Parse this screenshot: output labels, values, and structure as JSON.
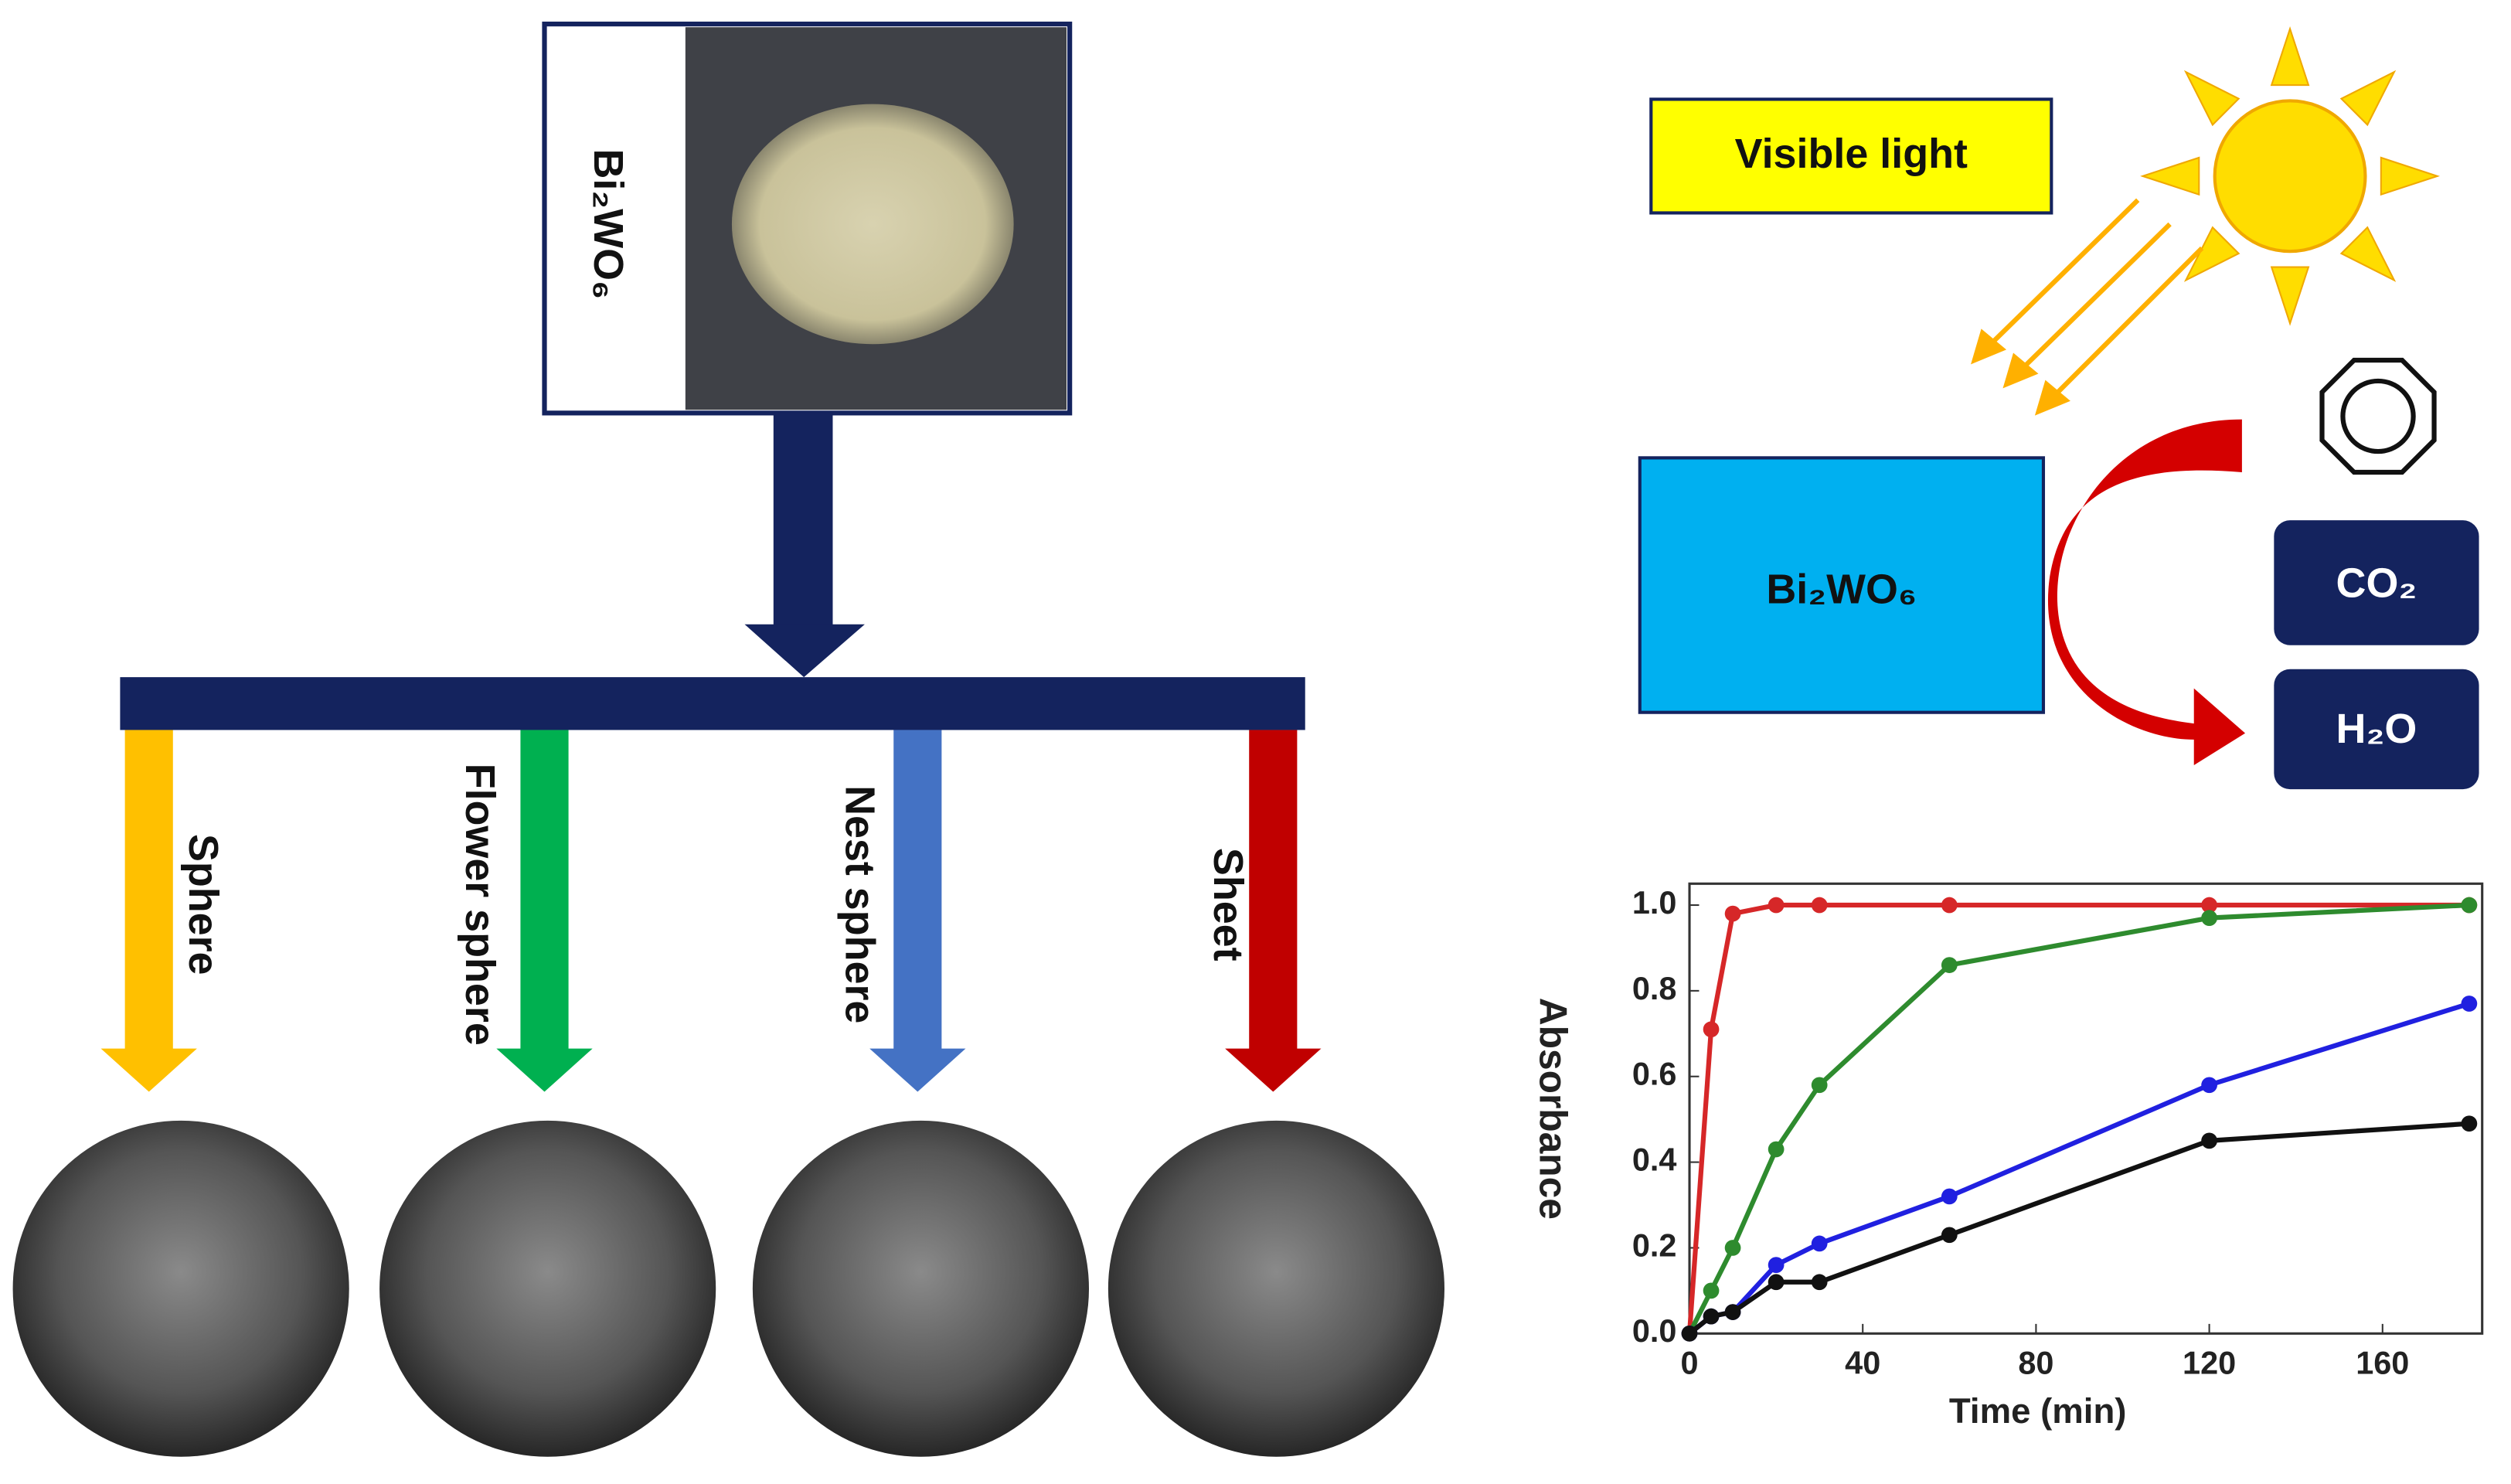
{
  "source": {
    "label": "Bi₂WO₆"
  },
  "morphologies": [
    {
      "label": "Sphere",
      "color": "#ffc000"
    },
    {
      "label": "Flower sphere",
      "color": "#00b050"
    },
    {
      "label": "Nest sphere",
      "color": "#4472c4"
    },
    {
      "label": "Sheet",
      "color": "#c00000"
    }
  ],
  "light_label": "Visible light",
  "catalyst_label": "Bi₂WO₆",
  "products": [
    "CO₂",
    "H₂O"
  ],
  "chart_data": {
    "type": "line",
    "x_label": "Time (min)",
    "y_label": "Absorbance",
    "x": [
      0,
      5,
      10,
      20,
      30,
      60,
      120,
      180
    ],
    "series": [
      {
        "color": "#d62728",
        "values": [
          0,
          0.71,
          0.98,
          1.0,
          1.0,
          1.0,
          1.0,
          1.0
        ]
      },
      {
        "color": "#2e8b2e",
        "values": [
          0,
          0.1,
          0.2,
          0.43,
          0.58,
          0.86,
          0.97,
          1.0
        ]
      },
      {
        "color": "#2020e0",
        "values": [
          0,
          0.04,
          0.05,
          0.16,
          0.21,
          0.32,
          0.58,
          0.77
        ]
      },
      {
        "color": "#111111",
        "values": [
          0,
          0.04,
          0.05,
          0.12,
          0.12,
          0.23,
          0.45,
          0.49
        ]
      }
    ],
    "xlim": [
      0,
      183
    ],
    "xticks": [
      0,
      40,
      80,
      120,
      160
    ],
    "ylim": [
      0,
      1.05
    ],
    "yticks": [
      {
        "value": 0,
        "label": "0.0"
      },
      0.2,
      0.4,
      0.6,
      0.8,
      {
        "value": 1,
        "label": "1.0"
      }
    ]
  }
}
